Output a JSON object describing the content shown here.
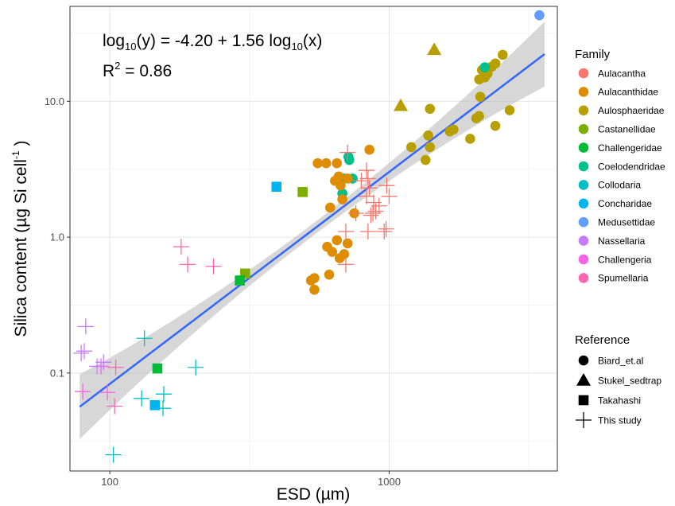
{
  "chart_data": {
    "type": "scatter",
    "xlabel": "ESD (µm)",
    "ylabel": "Silica content (µg Si cell",
    "ylabel_sup": "-1",
    "ylabel_tail": " )",
    "x_scale": "log",
    "y_scale": "log",
    "xlim": [
      72,
      4000
    ],
    "ylim": [
      0.019,
      50
    ],
    "x_ticks": [
      {
        "value": 100,
        "label": "100"
      },
      {
        "value": 1000,
        "label": "1000"
      }
    ],
    "y_ticks": [
      {
        "value": 0.1,
        "label": "0.1"
      },
      {
        "value": 1,
        "label": "1.0"
      },
      {
        "value": 10,
        "label": "10.0"
      }
    ],
    "grid": true,
    "annotation": {
      "eq_a": "log",
      "eq_b": "10",
      "eq_c": "(y) = -4.20 + 1.56 log",
      "eq_d": "10",
      "eq_e": "(x)",
      "r_a": "R",
      "r_b": "2",
      "r_c": " = 0.86"
    },
    "fit": {
      "intercept": -4.2,
      "slope": 1.56,
      "x_range": [
        78,
        3600
      ],
      "color": "#3366ff",
      "band_color": "#bdbdbd"
    },
    "legend_position": "right",
    "family_legend": {
      "title": "Family",
      "items": [
        {
          "name": "Aulacantha",
          "color": "#F8766D"
        },
        {
          "name": "Aulacanthidae",
          "color": "#DE8C00"
        },
        {
          "name": "Aulosphaeridae",
          "color": "#B79F00"
        },
        {
          "name": "Castanellidae",
          "color": "#7CAE00"
        },
        {
          "name": "Challengeridae",
          "color": "#00BA38"
        },
        {
          "name": "Coelodendridae",
          "color": "#00C08B"
        },
        {
          "name": "Collodaria",
          "color": "#00BFC4"
        },
        {
          "name": "Concharidae",
          "color": "#00B4F0"
        },
        {
          "name": "Medusettidae",
          "color": "#619CFF"
        },
        {
          "name": "Nassellaria",
          "color": "#C77CFF"
        },
        {
          "name": "Challengeria",
          "color": "#F564E3"
        },
        {
          "name": "Spumellaria",
          "color": "#FF64B0"
        }
      ]
    },
    "reference_legend": {
      "title": "Reference",
      "items": [
        {
          "name": "Biard_et.al",
          "shape": "circle"
        },
        {
          "name": "Stukel_sedtrap",
          "shape": "triangle"
        },
        {
          "name": "Takahashi",
          "shape": "square"
        },
        {
          "name": "This study",
          "shape": "cross"
        }
      ]
    },
    "series": [
      {
        "family": "Medusettidae",
        "reference": "Biard_et.al",
        "points": [
          [
            3450,
            43
          ]
        ]
      },
      {
        "family": "Aulosphaeridae",
        "reference": "Stukel_sedtrap",
        "points": [
          [
            1450,
            24
          ],
          [
            1100,
            9.3
          ]
        ]
      },
      {
        "family": "Aulosphaeridae",
        "reference": "Biard_et.al",
        "points": [
          [
            2550,
            22
          ],
          [
            2400,
            19
          ],
          [
            2330,
            18
          ],
          [
            2280,
            17.5
          ],
          [
            2250,
            16
          ],
          [
            2200,
            15
          ],
          [
            2150,
            17
          ],
          [
            2100,
            14.5
          ],
          [
            2120,
            10.8
          ],
          [
            2100,
            7.8
          ],
          [
            2050,
            7.5
          ],
          [
            2400,
            6.6
          ],
          [
            2700,
            8.6
          ],
          [
            1950,
            5.3
          ],
          [
            1700,
            6.2
          ],
          [
            1650,
            6
          ],
          [
            1400,
            8.8
          ],
          [
            1380,
            5.6
          ],
          [
            1400,
            4.6
          ],
          [
            1350,
            3.7
          ],
          [
            1200,
            4.6
          ],
          [
            2200,
            16.5
          ]
        ]
      },
      {
        "family": "Coelodendridae",
        "reference": "Biard_et.al",
        "points": [
          [
            2200,
            17.8
          ],
          [
            720,
            3.7
          ],
          [
            740,
            2.7
          ],
          [
            690,
            2.7
          ],
          [
            680,
            2.1
          ],
          [
            715,
            3.9
          ]
        ]
      },
      {
        "family": "Aulacanthidae",
        "reference": "Biard_et.al",
        "points": [
          [
            850,
            4.4
          ],
          [
            555,
            3.5
          ],
          [
            595,
            3.5
          ],
          [
            650,
            3.5
          ],
          [
            660,
            2.8
          ],
          [
            710,
            2.7
          ],
          [
            640,
            2.6
          ],
          [
            670,
            2.4
          ],
          [
            615,
            1.65
          ],
          [
            680,
            1.9
          ],
          [
            750,
            1.5
          ],
          [
            650,
            0.95
          ],
          [
            710,
            0.9
          ],
          [
            600,
            0.85
          ],
          [
            625,
            0.78
          ],
          [
            690,
            0.75
          ],
          [
            665,
            0.7
          ],
          [
            610,
            0.53
          ],
          [
            540,
            0.5
          ],
          [
            540,
            0.41
          ],
          [
            525,
            0.48
          ]
        ]
      },
      {
        "family": "Aulacantha",
        "reference": "This study",
        "points": [
          [
            710,
            4.2
          ],
          [
            795,
            2.6
          ],
          [
            830,
            3.1
          ],
          [
            840,
            2.7
          ],
          [
            850,
            2.3
          ],
          [
            830,
            2.0
          ],
          [
            880,
            1.8
          ],
          [
            920,
            1.7
          ],
          [
            860,
            1.45
          ],
          [
            895,
            1.55
          ],
          [
            875,
            1.5
          ],
          [
            700,
            1.1
          ],
          [
            840,
            1.1
          ],
          [
            960,
            1.1
          ],
          [
            975,
            1.15
          ],
          [
            1000,
            2.0
          ],
          [
            980,
            2.4
          ],
          [
            760,
            1.5
          ],
          [
            700,
            0.63
          ]
        ]
      },
      {
        "family": "Spumellaria",
        "reference": "This study",
        "points": [
          [
            180,
            0.85
          ],
          [
            190,
            0.63
          ],
          [
            235,
            0.61
          ],
          [
            105,
            0.11
          ],
          [
            104,
            0.057
          ]
        ]
      },
      {
        "family": "Challengeria",
        "reference": "This study",
        "points": [
          [
            80,
            0.073
          ],
          [
            93,
            0.112
          ],
          [
            98,
            0.072
          ]
        ]
      },
      {
        "family": "Nassellaria",
        "reference": "This study",
        "points": [
          [
            82,
            0.22
          ],
          [
            79,
            0.14
          ],
          [
            81,
            0.145
          ],
          [
            90,
            0.112
          ],
          [
            95,
            0.12
          ]
        ]
      },
      {
        "family": "Collodaria",
        "reference": "This study",
        "points": [
          [
            133,
            0.18
          ],
          [
            130,
            0.065
          ],
          [
            156,
            0.07
          ],
          [
            155,
            0.055
          ],
          [
            203,
            0.11
          ],
          [
            103,
            0.025
          ]
        ]
      },
      {
        "family": "Concharidae",
        "reference": "Takahashi",
        "points": [
          [
            395,
            2.35
          ],
          [
            145,
            0.058
          ]
        ]
      },
      {
        "family": "Castanellidae",
        "reference": "Takahashi",
        "points": [
          [
            490,
            2.15
          ],
          [
            305,
            0.54
          ]
        ]
      },
      {
        "family": "Challengeridae",
        "reference": "Takahashi",
        "points": [
          [
            148,
            0.108
          ],
          [
            292,
            0.48
          ]
        ]
      }
    ]
  }
}
